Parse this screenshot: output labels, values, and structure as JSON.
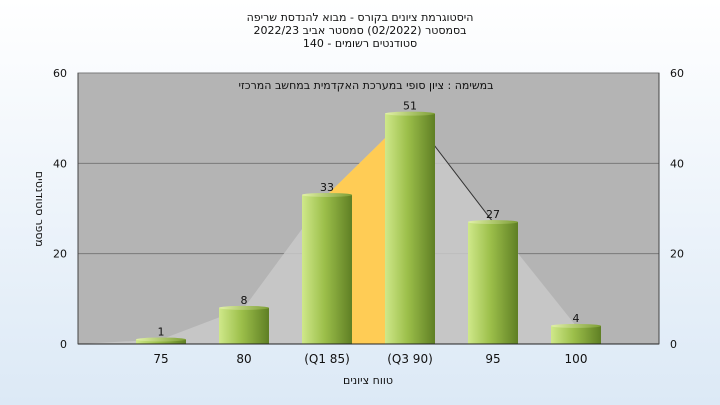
{
  "chart_data": {
    "type": "bar",
    "title_lines": [
      "היסטוגרמת ציונים בקורס - מבוא להנדסת שריפה",
      "בסמסטר  (02/2022)  סמסטר אביב 2022/23",
      "סטודנטים רשומים - 140"
    ],
    "subtitle": "במשימה : ציון סופי במערכת האקדמית במחשב המרכזי",
    "xlabel": "טווח ציונים",
    "ylabel": "מספר סטודנטים",
    "categories": [
      "75",
      "80",
      "(Q1 85)",
      "(Q3 90)",
      "95",
      "100"
    ],
    "values": [
      1,
      8,
      33,
      51,
      27,
      4
    ],
    "ylim": [
      0,
      60
    ],
    "yticks": [
      0,
      20,
      40,
      60
    ],
    "grid": true,
    "colors": {
      "plot_bg": "#b4b4b4",
      "bar_light": "#cfe88a",
      "bar_dark": "#5f7f24",
      "quartile_fill": "#ffcc55",
      "distribution_fill": "#c9c9c9",
      "grid": "#7a7a7a"
    }
  }
}
